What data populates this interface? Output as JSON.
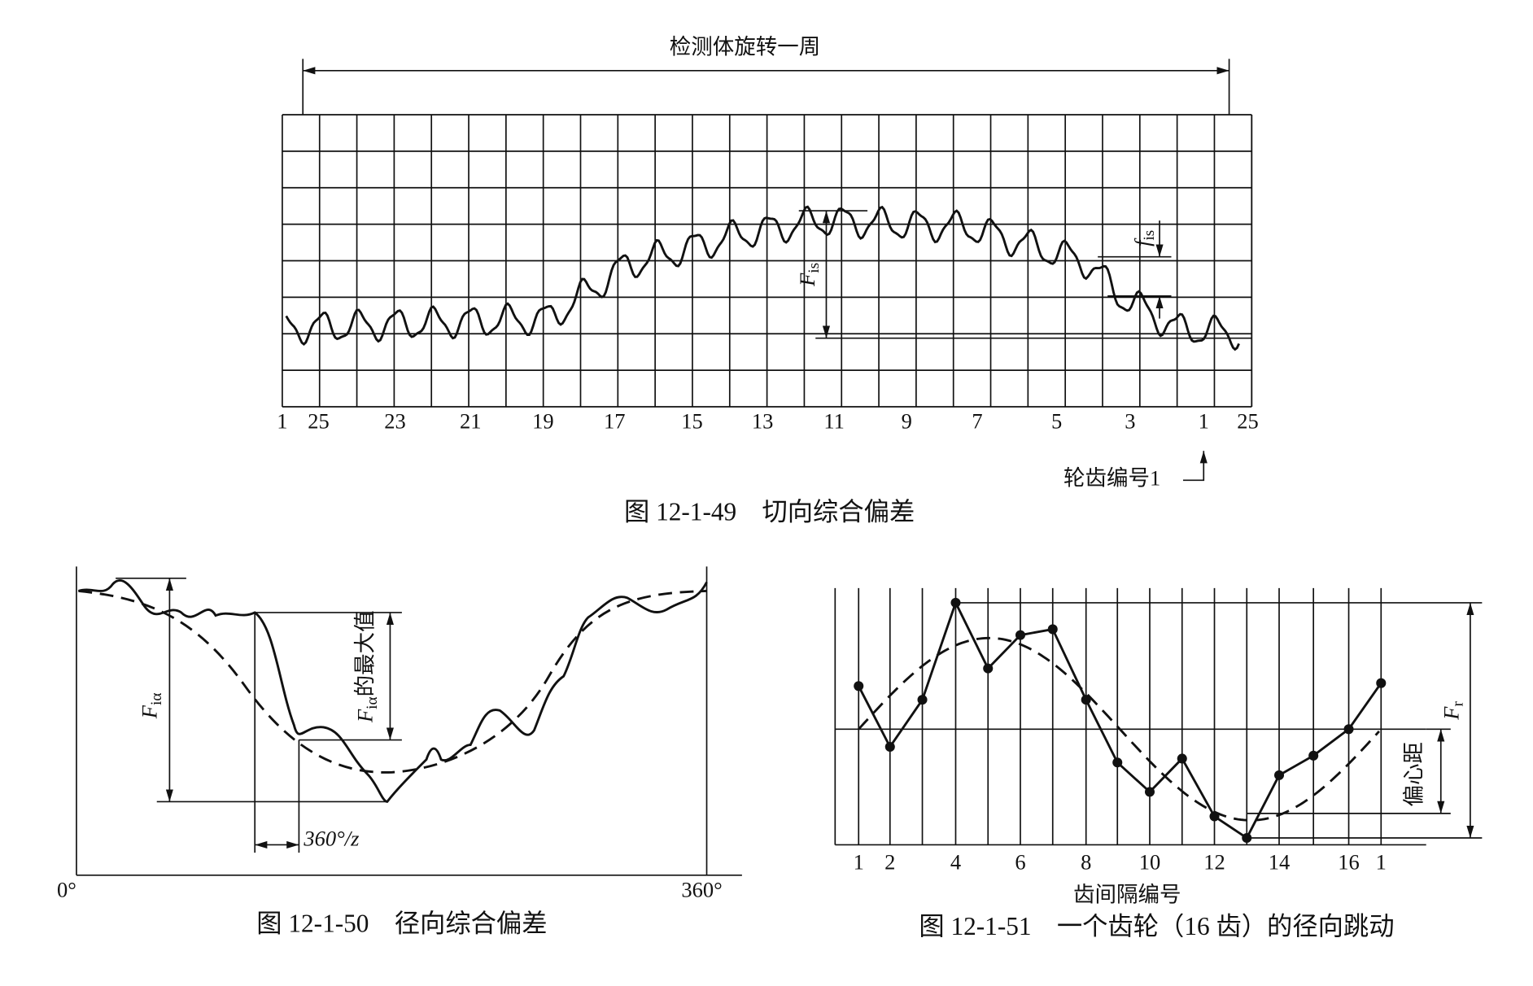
{
  "figure_49": {
    "span_label": "检测体旋转一周",
    "tooth_labels": [
      "1",
      "25",
      "23",
      "21",
      "19",
      "17",
      "15",
      "13",
      "11",
      "9",
      "7",
      "5",
      "3",
      "1",
      "25"
    ],
    "total_label": {
      "symbol": "F",
      "subscript": "is"
    },
    "tooth_label": {
      "symbol": "f",
      "subscript": "is"
    },
    "tooth_number_note": "轮齿编号1",
    "caption": "图 12-1-49　切向综合偏差"
  },
  "figure_50": {
    "total_label": {
      "symbol": "F",
      "subscript": "iα"
    },
    "max_label": {
      "symbol": "F",
      "subscript": "iα",
      "suffix": "的最大值"
    },
    "pitch_label": "360°/z",
    "start_label": "0°",
    "end_label": "360°",
    "caption": "图 12-1-50　径向综合偏差"
  },
  "figure_51": {
    "gap_labels": [
      "1",
      "2",
      "4",
      "6",
      "8",
      "10",
      "12",
      "14",
      "16",
      "1"
    ],
    "runout_label": {
      "symbol": "F",
      "subscript": "r"
    },
    "eccentricity_label": "偏心距",
    "x_title": "齿间隔编号",
    "caption": "图 12-1-51　一个齿轮（16 齿）的径向跳动"
  }
}
